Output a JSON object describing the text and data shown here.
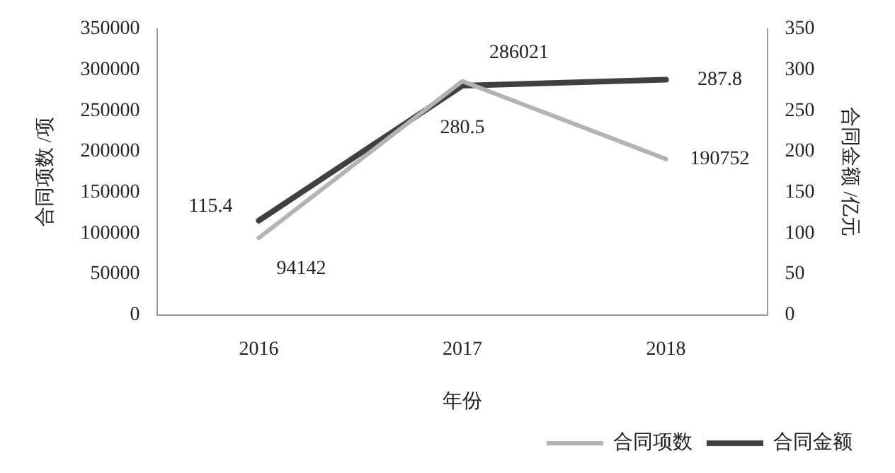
{
  "chart_data": {
    "type": "line",
    "xlabel": "年份",
    "ylabel": "合同项数 /项",
    "y2label": "合同金额 /亿元",
    "categories": [
      "2016",
      "2017",
      "2018"
    ],
    "series": [
      {
        "name": "合同项数",
        "color": "#b3b3b3",
        "values": [
          94142,
          286021,
          190752
        ]
      },
      {
        "name": "合同金额",
        "color": "#404040",
        "values": [
          115.4,
          280.5,
          287.8
        ],
        "axis": "y2"
      }
    ],
    "ylim": [
      0,
      350000
    ],
    "yticks": [
      0,
      50000,
      100000,
      150000,
      200000,
      250000,
      300000,
      350000
    ],
    "y2lim": [
      0,
      350
    ],
    "y2ticks": [
      0,
      50,
      100,
      150,
      200,
      250,
      300,
      350
    ],
    "grid": false,
    "legend": "bottom right",
    "data_labels": true,
    "marker": "none",
    "line_style": "solid"
  }
}
